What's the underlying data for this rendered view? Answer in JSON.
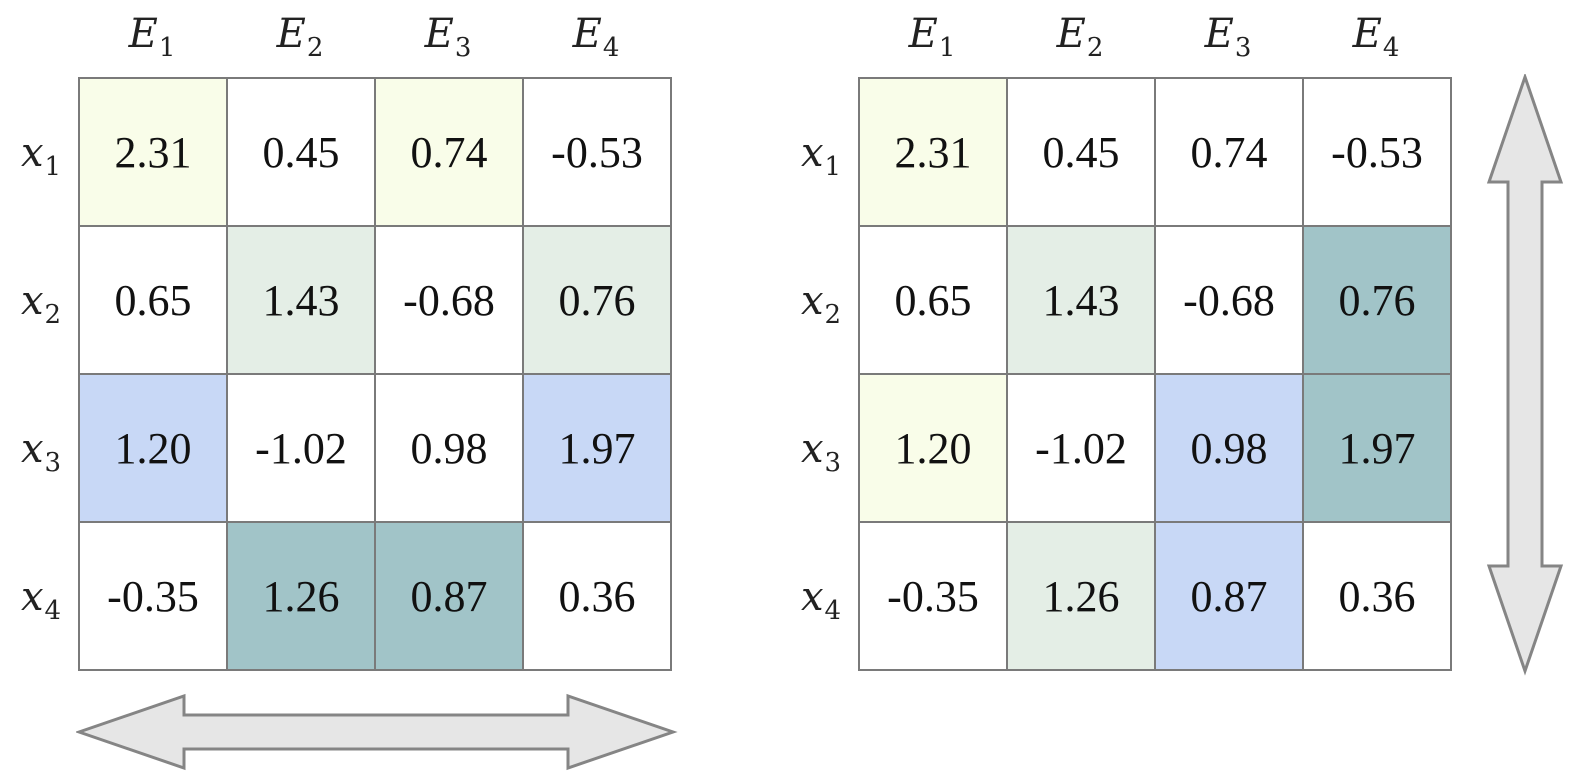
{
  "colors": {
    "w": "#ffffff",
    "y": "#f9fde9",
    "g": "#e4eee6",
    "b": "#c8d8f6",
    "t": "#a1c4c8",
    "border": "#7a7a7a",
    "arrow_fill": "#e6e6e6",
    "arrow_stroke": "#858585"
  },
  "column_headers": [
    "E",
    "E",
    "E",
    "E"
  ],
  "column_subscripts": [
    "1",
    "2",
    "3",
    "4"
  ],
  "row_labels": [
    "x",
    "x",
    "x",
    "x"
  ],
  "row_subscripts": [
    "1",
    "2",
    "3",
    "4"
  ],
  "left_matrix": {
    "cells": [
      [
        "2.31",
        "0.45",
        "0.74",
        "-0.53"
      ],
      [
        "0.65",
        "1.43",
        "-0.68",
        "0.76"
      ],
      [
        "1.20",
        "-1.02",
        "0.98",
        "1.97"
      ],
      [
        "-0.35",
        "1.26",
        "0.87",
        "0.36"
      ]
    ],
    "fills": [
      [
        "y",
        "w",
        "y",
        "w"
      ],
      [
        "w",
        "g",
        "w",
        "g"
      ],
      [
        "b",
        "w",
        "w",
        "b"
      ],
      [
        "w",
        "t",
        "t",
        "w"
      ]
    ]
  },
  "right_matrix": {
    "cells": [
      [
        "2.31",
        "0.45",
        "0.74",
        "-0.53"
      ],
      [
        "0.65",
        "1.43",
        "-0.68",
        "0.76"
      ],
      [
        "1.20",
        "-1.02",
        "0.98",
        "1.97"
      ],
      [
        "-0.35",
        "1.26",
        "0.87",
        "0.36"
      ]
    ],
    "fills": [
      [
        "y",
        "w",
        "w",
        "w"
      ],
      [
        "w",
        "g",
        "w",
        "t"
      ],
      [
        "y",
        "w",
        "b",
        "t"
      ],
      [
        "w",
        "g",
        "b",
        "w"
      ]
    ]
  },
  "arrows": {
    "left_matrix": "horizontal-double-arrow",
    "right_matrix": "vertical-double-arrow"
  }
}
